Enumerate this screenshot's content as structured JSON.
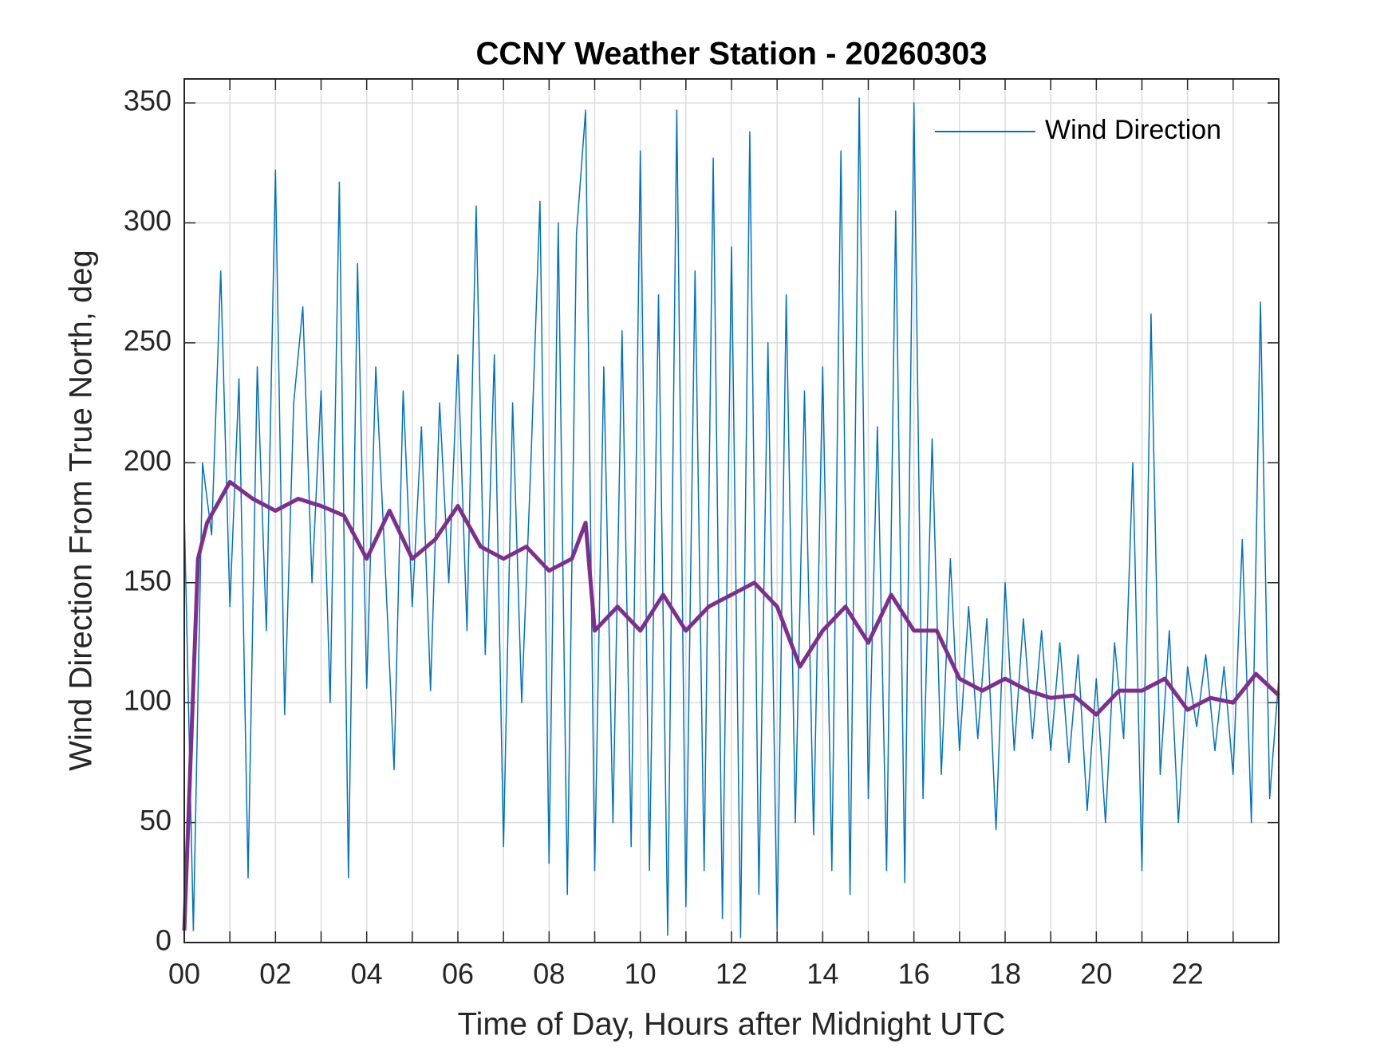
{
  "chart_data": {
    "type": "line",
    "title": "CCNY Weather Station - 20260303",
    "xlabel": "Time of Day, Hours after Midnight UTC",
    "ylabel": "Wind Direction From True North, deg",
    "xlim": [
      0,
      24
    ],
    "ylim": [
      0,
      360
    ],
    "xticks": [
      {
        "value": 0,
        "label": "00"
      },
      {
        "value": 2,
        "label": "02"
      },
      {
        "value": 4,
        "label": "04"
      },
      {
        "value": 6,
        "label": "06"
      },
      {
        "value": 8,
        "label": "08"
      },
      {
        "value": 10,
        "label": "10"
      },
      {
        "value": 12,
        "label": "12"
      },
      {
        "value": 14,
        "label": "14"
      },
      {
        "value": 16,
        "label": "16"
      },
      {
        "value": 18,
        "label": "18"
      },
      {
        "value": 20,
        "label": "20"
      },
      {
        "value": 22,
        "label": "22"
      }
    ],
    "xminorticks": [
      1,
      3,
      5,
      7,
      9,
      11,
      13,
      15,
      17,
      19,
      21,
      23
    ],
    "yticks": [
      0,
      50,
      100,
      150,
      200,
      250,
      300,
      350
    ],
    "grid": true,
    "legend": "upper right",
    "series": [
      {
        "name": "Wind Direction",
        "color": "#0072bd",
        "width": 1.5,
        "x": [
          0,
          0.2,
          0.4,
          0.6,
          0.8,
          1,
          1.2,
          1.4,
          1.6,
          1.8,
          2,
          2.2,
          2.4,
          2.6,
          2.8,
          3,
          3.2,
          3.4,
          3.6,
          3.8,
          4,
          4.2,
          4.4,
          4.6,
          4.8,
          5,
          5.2,
          5.4,
          5.6,
          5.8,
          6,
          6.2,
          6.4,
          6.6,
          6.8,
          7,
          7.2,
          7.4,
          7.6,
          7.8,
          8,
          8.2,
          8.4,
          8.6,
          8.8,
          9,
          9.2,
          9.4,
          9.6,
          9.8,
          10,
          10.2,
          10.4,
          10.6,
          10.8,
          11,
          11.2,
          11.4,
          11.6,
          11.8,
          12,
          12.2,
          12.4,
          12.6,
          12.8,
          13,
          13.2,
          13.4,
          13.6,
          13.8,
          14,
          14.2,
          14.4,
          14.6,
          14.8,
          15,
          15.2,
          15.4,
          15.6,
          15.8,
          16,
          16.2,
          16.4,
          16.6,
          16.8,
          17,
          17.2,
          17.4,
          17.6,
          17.8,
          18,
          18.2,
          18.4,
          18.6,
          18.8,
          19,
          19.2,
          19.4,
          19.6,
          19.8,
          20,
          20.2,
          20.4,
          20.6,
          20.8,
          21,
          21.2,
          21.4,
          21.6,
          21.8,
          22,
          22.2,
          22.4,
          22.6,
          22.8,
          23,
          23.2,
          23.4,
          23.6,
          23.8,
          24
        ],
        "values": [
          180,
          5,
          200,
          170,
          280,
          140,
          235,
          27,
          240,
          130,
          322,
          95,
          225,
          265,
          150,
          230,
          100,
          317,
          27,
          283,
          106,
          240,
          160,
          72,
          230,
          140,
          215,
          105,
          225,
          150,
          245,
          130,
          307,
          120,
          245,
          40,
          225,
          100,
          200,
          309,
          33,
          300,
          20,
          295,
          347,
          30,
          240,
          50,
          255,
          40,
          330,
          30,
          270,
          3,
          347,
          15,
          280,
          30,
          327,
          10,
          290,
          2,
          338,
          20,
          250,
          5,
          270,
          50,
          230,
          45,
          240,
          30,
          330,
          20,
          352,
          60,
          215,
          30,
          305,
          25,
          350,
          60,
          210,
          70,
          160,
          80,
          140,
          85,
          135,
          47,
          150,
          80,
          135,
          85,
          130,
          80,
          125,
          75,
          120,
          55,
          110,
          50,
          125,
          85,
          200,
          30,
          262,
          70,
          130,
          50,
          115,
          90,
          120,
          80,
          115,
          70,
          168,
          50,
          267,
          60,
          110
        ]
      },
      {
        "color": "#7e2f8e",
        "width": 5,
        "x": [
          0,
          0.3,
          0.5,
          1,
          1.5,
          2,
          2.5,
          3,
          3.5,
          4,
          4.5,
          5,
          5.5,
          6,
          6.5,
          7,
          7.5,
          8,
          8.5,
          8.8,
          9,
          9.5,
          10,
          10.5,
          11,
          11.5,
          12,
          12.5,
          13,
          13.5,
          14,
          14.5,
          15,
          15.5,
          16,
          16.5,
          17,
          17.5,
          18,
          18.5,
          19,
          19.5,
          20,
          20.5,
          21,
          21.5,
          22,
          22.5,
          23,
          23.5,
          24
        ],
        "values": [
          5,
          160,
          175,
          192,
          185,
          180,
          185,
          182,
          178,
          160,
          180,
          160,
          168,
          182,
          165,
          160,
          165,
          155,
          160,
          175,
          130,
          140,
          130,
          145,
          130,
          140,
          145,
          150,
          140,
          115,
          130,
          140,
          125,
          145,
          130,
          130,
          110,
          105,
          110,
          105,
          102,
          103,
          95,
          105,
          105,
          110,
          97,
          102,
          100,
          112,
          103
        ]
      }
    ]
  }
}
